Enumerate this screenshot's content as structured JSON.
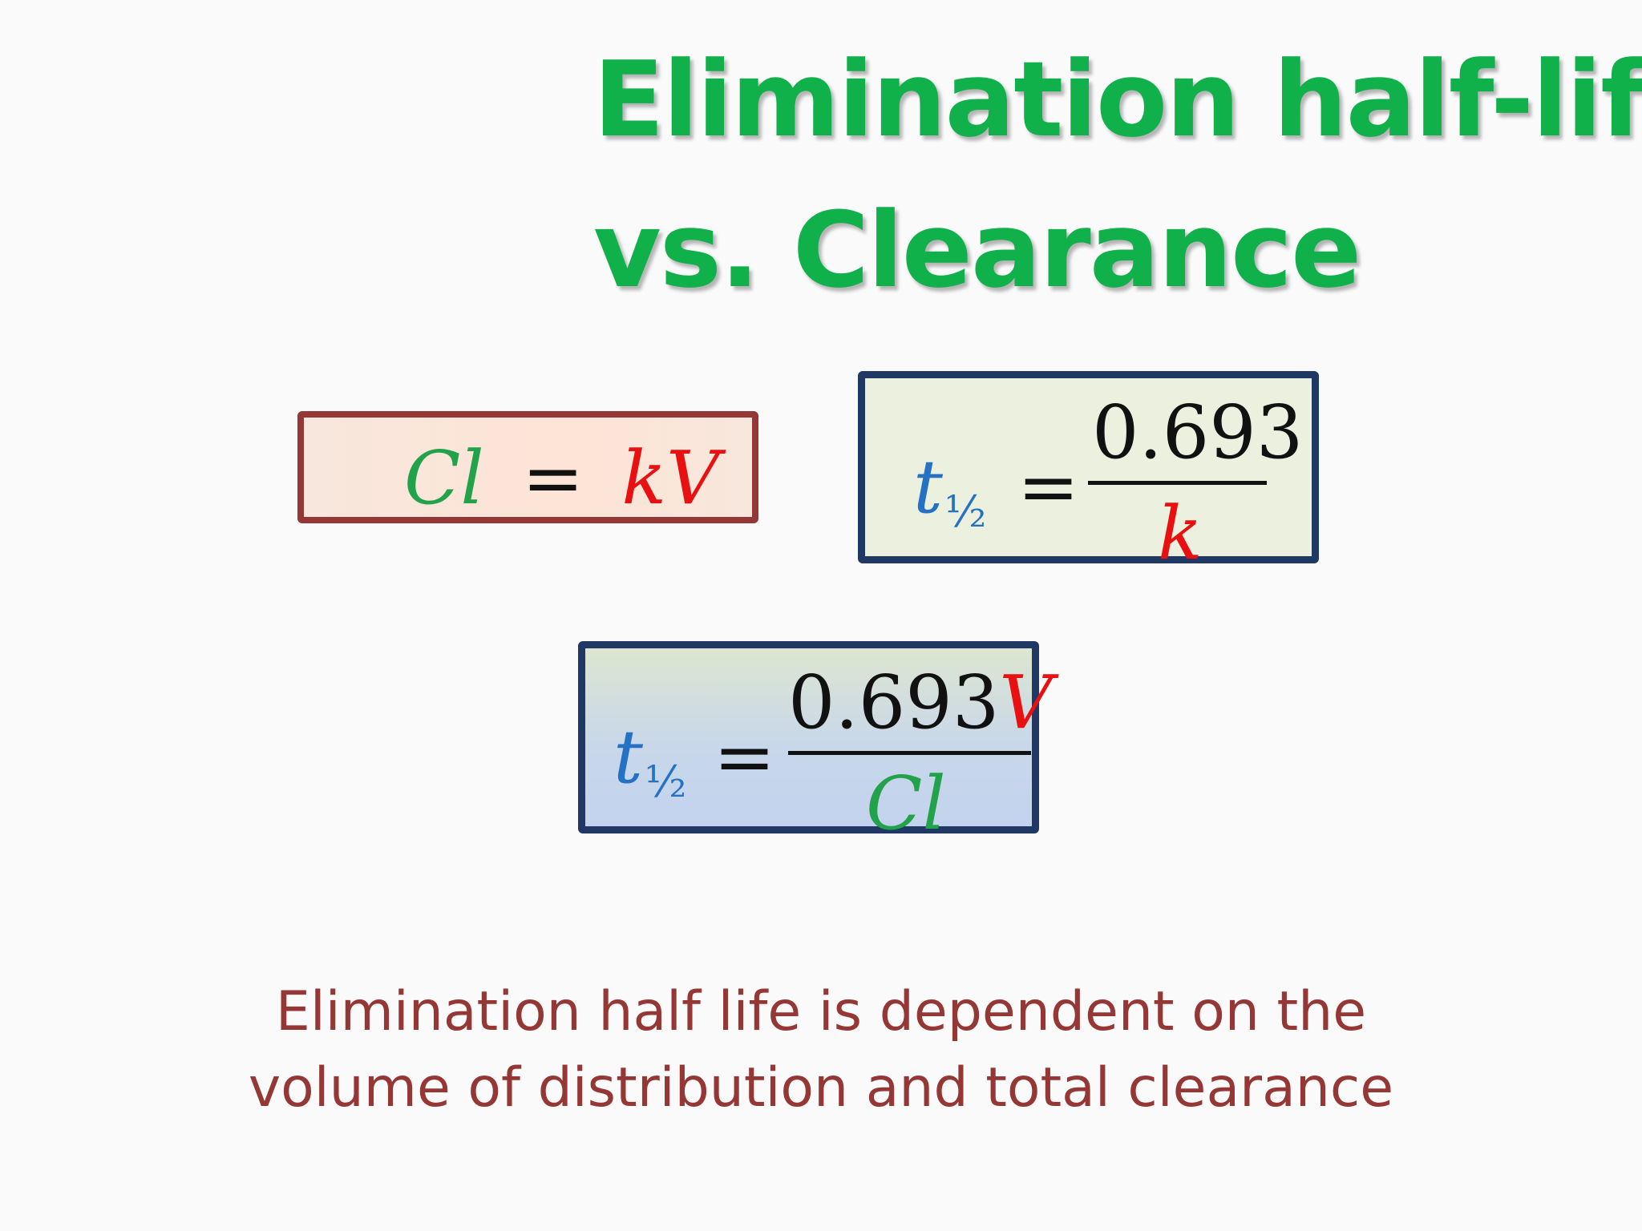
{
  "title": {
    "line1": "Elimination half-life",
    "line2": "vs. Clearance"
  },
  "eq1": {
    "lhs": "Cl",
    "equals": "=",
    "rhs": "kV"
  },
  "eq2": {
    "lhs_var": "t",
    "lhs_sub": "½",
    "equals": "=",
    "numerator": "0.693",
    "denominator": "k"
  },
  "eq3": {
    "lhs_var": "t",
    "lhs_sub": "½",
    "equals": "=",
    "numerator_num": "0.693",
    "numerator_var": "V",
    "denominator": "Cl"
  },
  "caption": {
    "line1": "Elimination half life is dependent on the",
    "line2": "volume of distribution and total clearance"
  },
  "colors": {
    "title": "#10b04a",
    "caption": "#953735",
    "clearance": "#22a24a",
    "rate_constant_and_volume": "#e81010",
    "half_life": "#2572c4",
    "box1_border": "#953735",
    "box2_border": "#1f3864",
    "box3_border": "#1f3864"
  }
}
